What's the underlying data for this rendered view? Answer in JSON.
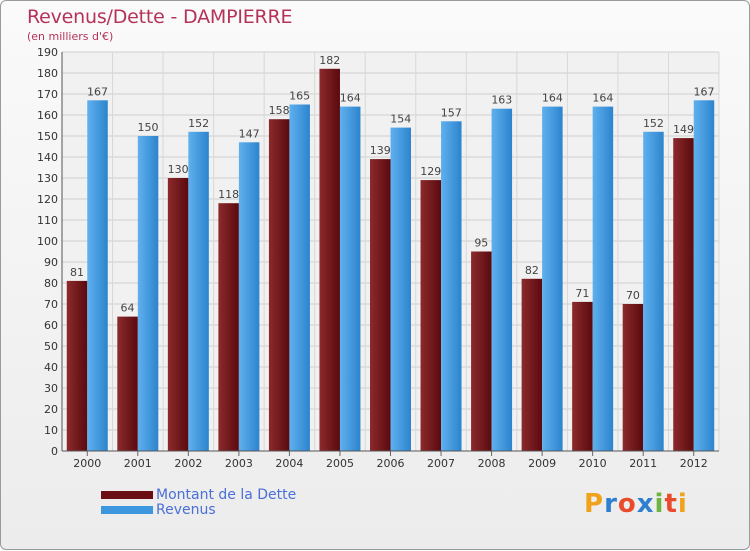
{
  "header": {
    "title": "Revenus/Dette - DAMPIERRE",
    "subtitle": "(en milliers d'€)"
  },
  "legend": {
    "items": [
      {
        "label": "Montant de la Dette",
        "color": "#6b0f14"
      },
      {
        "label": "Revenus",
        "color": "#3d97de"
      }
    ]
  },
  "logo": {
    "letters": [
      {
        "ch": "P",
        "color": "#f0a21a"
      },
      {
        "ch": "r",
        "color": "#2f7fd0"
      },
      {
        "ch": "o",
        "color": "#e94c2c"
      },
      {
        "ch": "x",
        "color": "#2f7fd0"
      },
      {
        "ch": "i",
        "color": "#6cb33f"
      },
      {
        "ch": "t",
        "color": "#e94c2c"
      },
      {
        "ch": "i",
        "color": "#f0a21a"
      }
    ]
  },
  "chart_data": {
    "type": "bar",
    "title": "Revenus/Dette - DAMPIERRE",
    "subtitle": "(en milliers d'€)",
    "categories": [
      "2000",
      "2001",
      "2002",
      "2003",
      "2004",
      "2005",
      "2006",
      "2007",
      "2008",
      "2009",
      "2010",
      "2011",
      "2012"
    ],
    "series": [
      {
        "name": "Montant de la Dette",
        "color": "#6b0f14",
        "values": [
          81,
          64,
          130,
          118,
          158,
          182,
          139,
          129,
          95,
          82,
          71,
          70,
          149
        ]
      },
      {
        "name": "Revenus",
        "color": "#3d97de",
        "values": [
          167,
          150,
          152,
          147,
          165,
          164,
          154,
          157,
          163,
          164,
          164,
          152,
          167
        ]
      }
    ],
    "ylim": [
      0,
      190
    ],
    "ytick_step": 10,
    "grid": true,
    "legend_position": "bottom-left"
  }
}
